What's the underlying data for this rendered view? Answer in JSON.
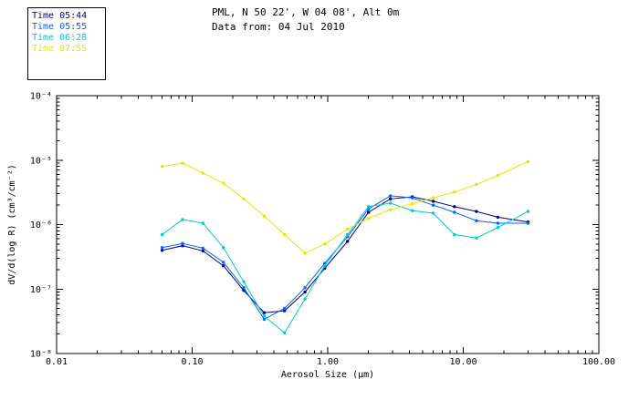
{
  "header": {
    "line1": "PML, N 50 22', W 04 08', Alt 0m",
    "line2": "Data from: 04 Jul 2010"
  },
  "legend": {
    "entries": [
      {
        "label": "Time 05:44",
        "color": "#00008B"
      },
      {
        "label": "Time 05:55",
        "color": "#0066FF"
      },
      {
        "label": "Time 06:28",
        "color": "#00CCCC"
      },
      {
        "label": "Time 07:55",
        "color": "#E6E600"
      }
    ]
  },
  "chart_data": {
    "type": "line",
    "title": "",
    "xlabel": "Aerosol Size (μm)",
    "ylabel": "dV/d(log R) (cm³/cm⁻²)",
    "xscale": "log",
    "yscale": "log",
    "xlim": [
      0.01,
      100
    ],
    "ylim": [
      1e-08,
      0.0001
    ],
    "xtick_labels": [
      "0.01",
      "0.10",
      "1.00",
      "10.00",
      "100.00"
    ],
    "ytick_labels": [
      "10⁻⁴",
      "10⁻⁵",
      "10⁻⁶",
      "10⁻⁷",
      "10⁻⁸"
    ],
    "grid": false,
    "legend_position": "top-left",
    "x": [
      0.06,
      0.085,
      0.12,
      0.17,
      0.24,
      0.34,
      0.48,
      0.68,
      0.95,
      1.4,
      2.0,
      2.9,
      4.2,
      6.0,
      8.6,
      12.5,
      18,
      30
    ],
    "series": [
      {
        "name": "Time 05:44",
        "color": "#00008B",
        "values": [
          4e-07,
          4.7e-07,
          3.9e-07,
          2.3e-07,
          9.5e-08,
          4.3e-08,
          4.6e-08,
          9e-08,
          2.1e-07,
          5.5e-07,
          1.55e-06,
          2.5e-06,
          2.7e-06,
          2.3e-06,
          1.9e-06,
          1.6e-06,
          1.3e-06,
          1.1e-06
        ]
      },
      {
        "name": "Time 05:55",
        "color": "#0066FF",
        "values": [
          4.4e-07,
          5.1e-07,
          4.3e-07,
          2.6e-07,
          1.05e-07,
          3.4e-08,
          5e-08,
          1.05e-07,
          2.5e-07,
          6.5e-07,
          1.75e-06,
          2.8e-06,
          2.6e-06,
          2e-06,
          1.55e-06,
          1.15e-06,
          1.05e-06,
          1.05e-06
        ]
      },
      {
        "name": "Time 06:28",
        "color": "#00CCCC",
        "values": [
          7e-07,
          1.2e-06,
          1.05e-06,
          4.4e-07,
          1.3e-07,
          3.8e-08,
          2.1e-08,
          7e-08,
          2.3e-07,
          7e-07,
          1.9e-06,
          2.15e-06,
          1.65e-06,
          1.5e-06,
          7e-07,
          6.2e-07,
          9e-07,
          1.6e-06
        ]
      },
      {
        "name": "Time 07:55",
        "color": "#E6E600",
        "values": [
          8e-06,
          9e-06,
          6.3e-06,
          4.4e-06,
          2.5e-06,
          1.35e-06,
          7e-07,
          3.6e-07,
          5e-07,
          8.5e-07,
          1.25e-06,
          1.7e-06,
          2.1e-06,
          2.6e-06,
          3.2e-06,
          4.2e-06,
          5.8e-06,
          9.5e-06
        ]
      }
    ]
  }
}
